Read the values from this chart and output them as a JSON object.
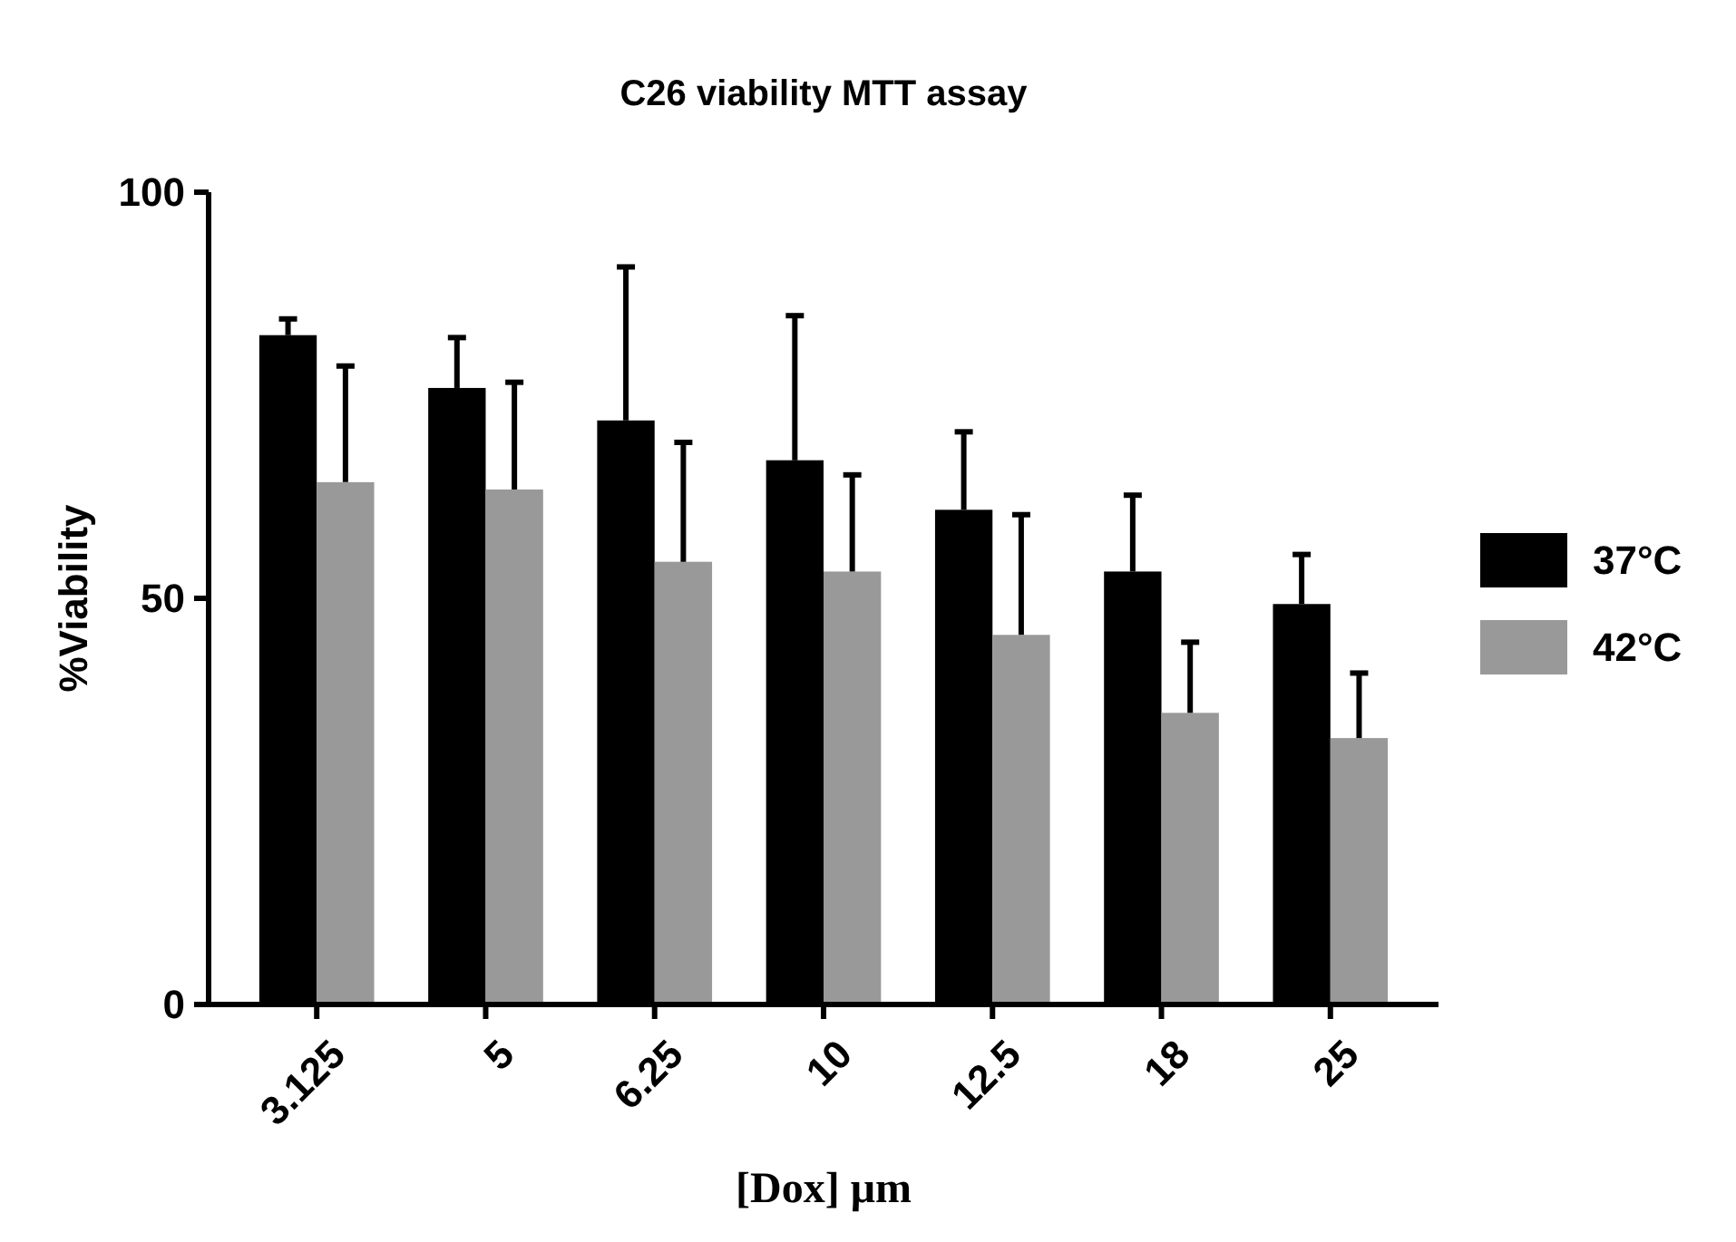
{
  "chart_data": {
    "type": "bar",
    "title": "C26 viability MTT assay",
    "xlabel": "[Dox] μm",
    "ylabel": "%Viability",
    "categories": [
      "3.125",
      "5",
      "6.25",
      "10",
      "12.5",
      "18",
      "25"
    ],
    "series": [
      {
        "name": "37°C",
        "color": "#000000",
        "values": [
          82.4,
          75.9,
          71.9,
          67,
          60.9,
          53.3,
          49.3
        ],
        "errors": [
          [
            82.4,
            84.4
          ],
          [
            75.9,
            82.1
          ],
          [
            71.9,
            90.8
          ],
          [
            67,
            84.8
          ],
          [
            60.9,
            70.5
          ],
          [
            53.3,
            62.7
          ],
          [
            49.3,
            55.4
          ]
        ]
      },
      {
        "name": "42°C",
        "color": "#999999",
        "values": [
          64.3,
          63.4,
          54.5,
          53.3,
          45.5,
          35.9,
          32.8
        ],
        "errors": [
          [
            64.3,
            78.6
          ],
          [
            63.4,
            76.6
          ],
          [
            54.5,
            69.2
          ],
          [
            53.3,
            65.2
          ],
          [
            45.5,
            60.3
          ],
          [
            35.9,
            44.6
          ],
          [
            32.8,
            40.8
          ]
        ]
      }
    ],
    "ylim": [
      0,
      100
    ],
    "yticks": [
      0,
      50,
      100
    ],
    "grid": false,
    "legend": "right"
  }
}
